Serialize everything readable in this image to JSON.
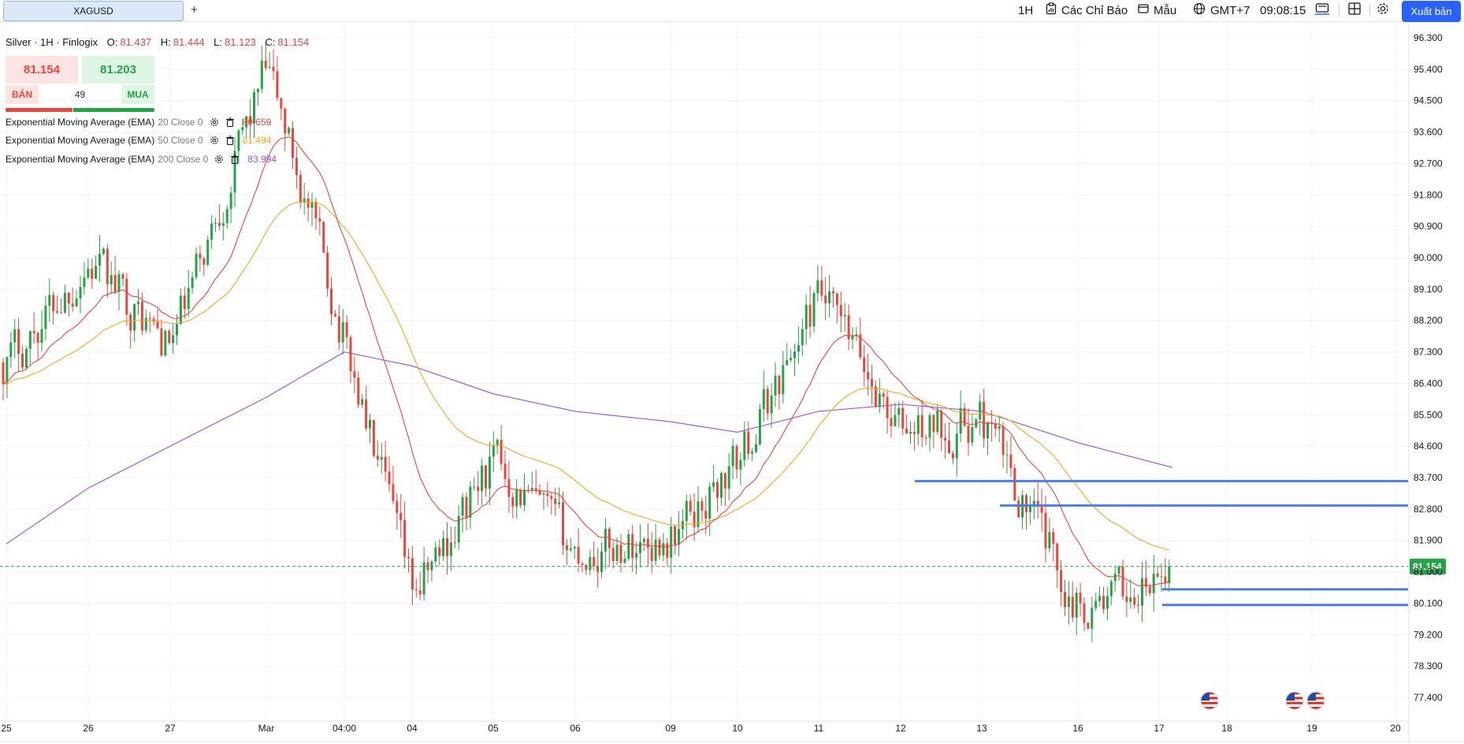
{
  "toolbar": {
    "tab_label": "XAGUSD",
    "add_tab": "+",
    "interval": "1H",
    "indicators_label": "Các Chỉ Báo",
    "templates_label": "Mẫu",
    "timezone": "GMT+7",
    "clock": "09:08:15",
    "publish_label": "Xuất bản"
  },
  "legend": {
    "symbol": "Silver · 1H · Finlogix",
    "open_label": "O:",
    "open": "81.437",
    "high_label": "H:",
    "high": "81.444",
    "low_label": "L:",
    "low": "81.123",
    "close_label": "C:",
    "close": "81.154"
  },
  "trade": {
    "sell_price": "81.154",
    "buy_price": "81.203",
    "sell_label": "BÁN",
    "buy_label": "MUA",
    "spread": "49"
  },
  "indicators": [
    {
      "name": "Exponential Moving Average (EMA)",
      "params": "20 Close 0",
      "value": "80.659",
      "color": "#e8473c"
    },
    {
      "name": "Exponential Moving Average (EMA)",
      "params": "50 Close 0",
      "value": "81.494",
      "color": "#f5a623"
    },
    {
      "name": "Exponential Moving Average (EMA)",
      "params": "200 Close 0",
      "value": "83.994",
      "color": "#9c4fd6"
    }
  ],
  "colors": {
    "up": "#26a247",
    "down": "#e8473c",
    "ema20": "#e8473c",
    "ema50": "#f5a623",
    "ema200": "#9c4fd6",
    "hline": "#4a7fe0",
    "price_tag": "#26a247"
  },
  "chart_data": {
    "type": "candlestick",
    "title": "",
    "y_ticks": [
      "96.300",
      "95.400",
      "94.500",
      "93.600",
      "92.700",
      "91.800",
      "90.900",
      "90.000",
      "89.100",
      "88.200",
      "87.300",
      "86.400",
      "85.500",
      "84.600",
      "83.700",
      "82.800",
      "81.900",
      "81.000",
      "80.100",
      "79.200",
      "78.300",
      "77.400"
    ],
    "y_tick_values": [
      96.3,
      95.4,
      94.5,
      93.6,
      92.7,
      91.8,
      90.9,
      90.0,
      89.1,
      88.2,
      87.3,
      86.4,
      85.5,
      84.6,
      83.7,
      82.8,
      81.9,
      81.0,
      80.1,
      79.2,
      78.3,
      77.4
    ],
    "ylim": [
      76.95,
      96.75
    ],
    "x_ticks": [
      "25",
      "26",
      "27",
      "Mar",
      "04:00",
      "04",
      "05",
      "06",
      "09",
      "10",
      "11",
      "12",
      "13",
      "16",
      "17",
      "18",
      "19",
      "20"
    ],
    "last_price": "81.154",
    "last_price_value": 81.154,
    "horizontal_lines": [
      {
        "value": 83.6,
        "from_date": "12"
      },
      {
        "value": 82.9,
        "from_date": "13"
      },
      {
        "value": 80.5,
        "from_date": "17"
      },
      {
        "value": 80.05,
        "from_date": "17"
      }
    ],
    "close_path": [
      [
        "25",
        87.0
      ],
      [
        "26",
        89.9
      ],
      [
        "27",
        87.4
      ],
      [
        "Mar",
        95.5
      ],
      [
        "04:00",
        87.6
      ],
      [
        "04",
        80.2
      ],
      [
        "05",
        84.2
      ],
      [
        "06",
        81.5
      ],
      [
        "09",
        82.0
      ],
      [
        "10",
        84.1
      ],
      [
        "11",
        88.9
      ],
      [
        "12",
        85.0
      ],
      [
        "13",
        85.3
      ],
      [
        "16",
        80.0
      ],
      [
        "17",
        80.6
      ]
    ],
    "ema200_path": [
      [
        "25",
        81.8
      ],
      [
        "26",
        83.4
      ],
      [
        "27",
        84.6
      ],
      [
        "Mar",
        86.0
      ],
      [
        "04:00",
        87.3
      ],
      [
        "04",
        86.9
      ],
      [
        "05",
        86.1
      ],
      [
        "06",
        85.6
      ],
      [
        "09",
        85.3
      ],
      [
        "10",
        85.0
      ],
      [
        "11",
        85.6
      ],
      [
        "12",
        85.8
      ],
      [
        "13",
        85.6
      ],
      [
        "16",
        84.7
      ],
      [
        "17",
        83.99
      ]
    ],
    "events": [
      {
        "icon": "us-flag-icon",
        "date": "17"
      },
      {
        "icon": "us-flag-icon",
        "date": "18"
      },
      {
        "icon": "us-flag-icon",
        "date": "19"
      }
    ]
  }
}
